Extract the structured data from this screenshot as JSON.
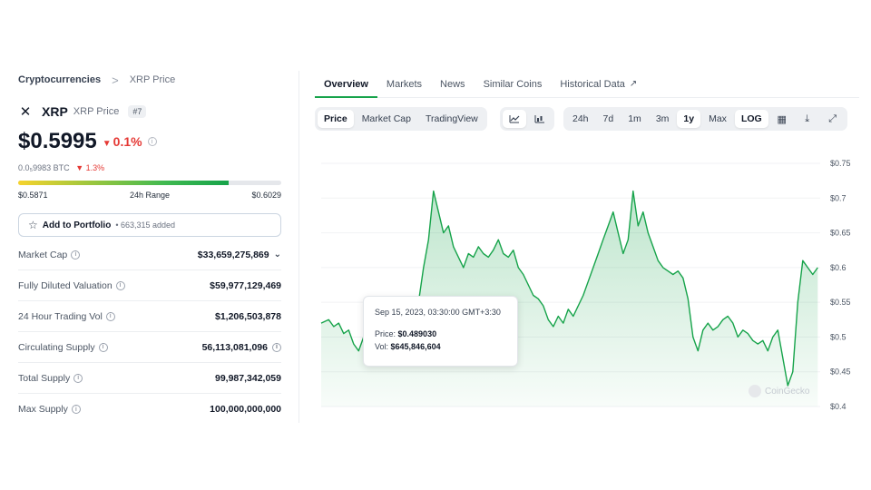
{
  "breadcrumb": {
    "parent": "Cryptocurrencies",
    "separator": ">",
    "current": "XRP Price"
  },
  "coin": {
    "symbol": "XRP",
    "name": "XRP Price",
    "rank": "#7",
    "price": "$0.5995",
    "change_24h": "0.1%",
    "btc_price": "0.0₅9983 BTC",
    "btc_change": "1.3%",
    "down_color": "#e53935"
  },
  "range": {
    "low": "$0.5871",
    "label": "24h Range",
    "high": "$0.6029",
    "position_fraction": 0.8
  },
  "portfolio": {
    "label": "Add to Portfolio",
    "count": "• 663,315 added"
  },
  "stats": [
    {
      "label": "Market Cap",
      "value": "$33,659,275,869"
    },
    {
      "label": "Fully Diluted Valuation",
      "value": "$59,977,129,469"
    },
    {
      "label": "24 Hour Trading Vol",
      "value": "$1,206,503,878"
    },
    {
      "label": "Circulating Supply",
      "value": "56,113,081,096"
    },
    {
      "label": "Total Supply",
      "value": "99,987,342,059"
    },
    {
      "label": "Max Supply",
      "value": "100,000,000,000"
    }
  ],
  "tabs": [
    "Overview",
    "Markets",
    "News",
    "Similar Coins",
    "Historical Data"
  ],
  "active_tab": "Overview",
  "toolbar": {
    "views": [
      "Price",
      "Market Cap",
      "TradingView"
    ],
    "active_view": "Price",
    "chart_types": [
      "line-chart-icon",
      "candlestick-icon"
    ],
    "ranges": [
      "24h",
      "7d",
      "1m",
      "3m",
      "1y",
      "Max",
      "LOG"
    ],
    "active_range": "1y",
    "tools": [
      "calendar-icon",
      "download-icon",
      "expand-icon"
    ]
  },
  "tooltip": {
    "date": "Sep 15, 2023, 03:30:00 GMT+3:30",
    "price_label": "Price:",
    "price_value": "$0.489030",
    "vol_label": "Vol:",
    "vol_value": "$645,846,604"
  },
  "watermark": "CoinGecko",
  "accent_color": "#16a34a",
  "chart_data": {
    "type": "area",
    "title": "",
    "xlabel": "",
    "ylabel": "",
    "y_tick_labels": [
      "$0.75",
      "$0.7",
      "$0.65",
      "$0.6",
      "$0.55",
      "$0.5",
      "$0.45",
      "$0.4"
    ],
    "y_ticks": [
      0.75,
      0.7,
      0.65,
      0.6,
      0.55,
      0.5,
      0.45,
      0.4
    ],
    "log_scale": false,
    "grid": true,
    "x_range": [
      0,
      100
    ],
    "ylim": [
      0.4,
      0.75
    ],
    "series": [
      {
        "values": [
          [
            0,
            0.52
          ],
          [
            1.5,
            0.525
          ],
          [
            2.5,
            0.515
          ],
          [
            3.5,
            0.52
          ],
          [
            4.5,
            0.505
          ],
          [
            5.5,
            0.51
          ],
          [
            6.5,
            0.49
          ],
          [
            7.5,
            0.48
          ],
          [
            8.5,
            0.5
          ],
          [
            9.5,
            0.495
          ],
          [
            10.5,
            0.5
          ],
          [
            11.5,
            0.52
          ],
          [
            12.5,
            0.53
          ],
          [
            13.5,
            0.52
          ],
          [
            14.5,
            0.51
          ],
          [
            15.5,
            0.515
          ],
          [
            16.5,
            0.52
          ],
          [
            17.5,
            0.505
          ],
          [
            18.5,
            0.53
          ],
          [
            19.5,
            0.55
          ],
          [
            20.5,
            0.6
          ],
          [
            21.5,
            0.64
          ],
          [
            22.5,
            0.71
          ],
          [
            23.5,
            0.68
          ],
          [
            24.5,
            0.65
          ],
          [
            25.5,
            0.66
          ],
          [
            26.5,
            0.63
          ],
          [
            27.5,
            0.615
          ],
          [
            28.5,
            0.6
          ],
          [
            29.5,
            0.62
          ],
          [
            30.5,
            0.615
          ],
          [
            31.5,
            0.63
          ],
          [
            32.5,
            0.62
          ],
          [
            33.5,
            0.615
          ],
          [
            34.5,
            0.625
          ],
          [
            35.5,
            0.64
          ],
          [
            36.5,
            0.62
          ],
          [
            37.5,
            0.615
          ],
          [
            38.5,
            0.625
          ],
          [
            39.5,
            0.6
          ],
          [
            40.5,
            0.59
          ],
          [
            41.5,
            0.575
          ],
          [
            42.5,
            0.56
          ],
          [
            43.5,
            0.555
          ],
          [
            44.5,
            0.545
          ],
          [
            45.5,
            0.525
          ],
          [
            46.5,
            0.515
          ],
          [
            47.5,
            0.53
          ],
          [
            48.5,
            0.52
          ],
          [
            49.5,
            0.54
          ],
          [
            50.5,
            0.53
          ],
          [
            51.5,
            0.545
          ],
          [
            52.5,
            0.56
          ],
          [
            53.5,
            0.58
          ],
          [
            54.5,
            0.6
          ],
          [
            55.5,
            0.62
          ],
          [
            56.5,
            0.64
          ],
          [
            57.5,
            0.66
          ],
          [
            58.5,
            0.68
          ],
          [
            59.5,
            0.65
          ],
          [
            60.5,
            0.62
          ],
          [
            61.5,
            0.64
          ],
          [
            62.5,
            0.71
          ],
          [
            63.5,
            0.66
          ],
          [
            64.5,
            0.68
          ],
          [
            65.5,
            0.65
          ],
          [
            66.5,
            0.63
          ],
          [
            67.5,
            0.61
          ],
          [
            68.5,
            0.6
          ],
          [
            69.5,
            0.595
          ],
          [
            70.5,
            0.59
          ],
          [
            71.5,
            0.595
          ],
          [
            72.5,
            0.585
          ],
          [
            73.5,
            0.555
          ],
          [
            74.5,
            0.5
          ],
          [
            75.5,
            0.48
          ],
          [
            76.5,
            0.51
          ],
          [
            77.5,
            0.52
          ],
          [
            78.5,
            0.51
          ],
          [
            79.5,
            0.515
          ],
          [
            80.5,
            0.525
          ],
          [
            81.5,
            0.53
          ],
          [
            82.5,
            0.52
          ],
          [
            83.5,
            0.5
          ],
          [
            84.5,
            0.51
          ],
          [
            85.5,
            0.505
          ],
          [
            86.5,
            0.495
          ],
          [
            87.5,
            0.49
          ],
          [
            88.5,
            0.495
          ],
          [
            89.5,
            0.48
          ],
          [
            90.5,
            0.5
          ],
          [
            91.5,
            0.51
          ],
          [
            92.5,
            0.47
          ],
          [
            93.5,
            0.43
          ],
          [
            94.5,
            0.45
          ],
          [
            95.5,
            0.55
          ],
          [
            96.5,
            0.61
          ],
          [
            97.5,
            0.6
          ],
          [
            98.5,
            0.59
          ],
          [
            99.5,
            0.6
          ]
        ]
      }
    ]
  }
}
